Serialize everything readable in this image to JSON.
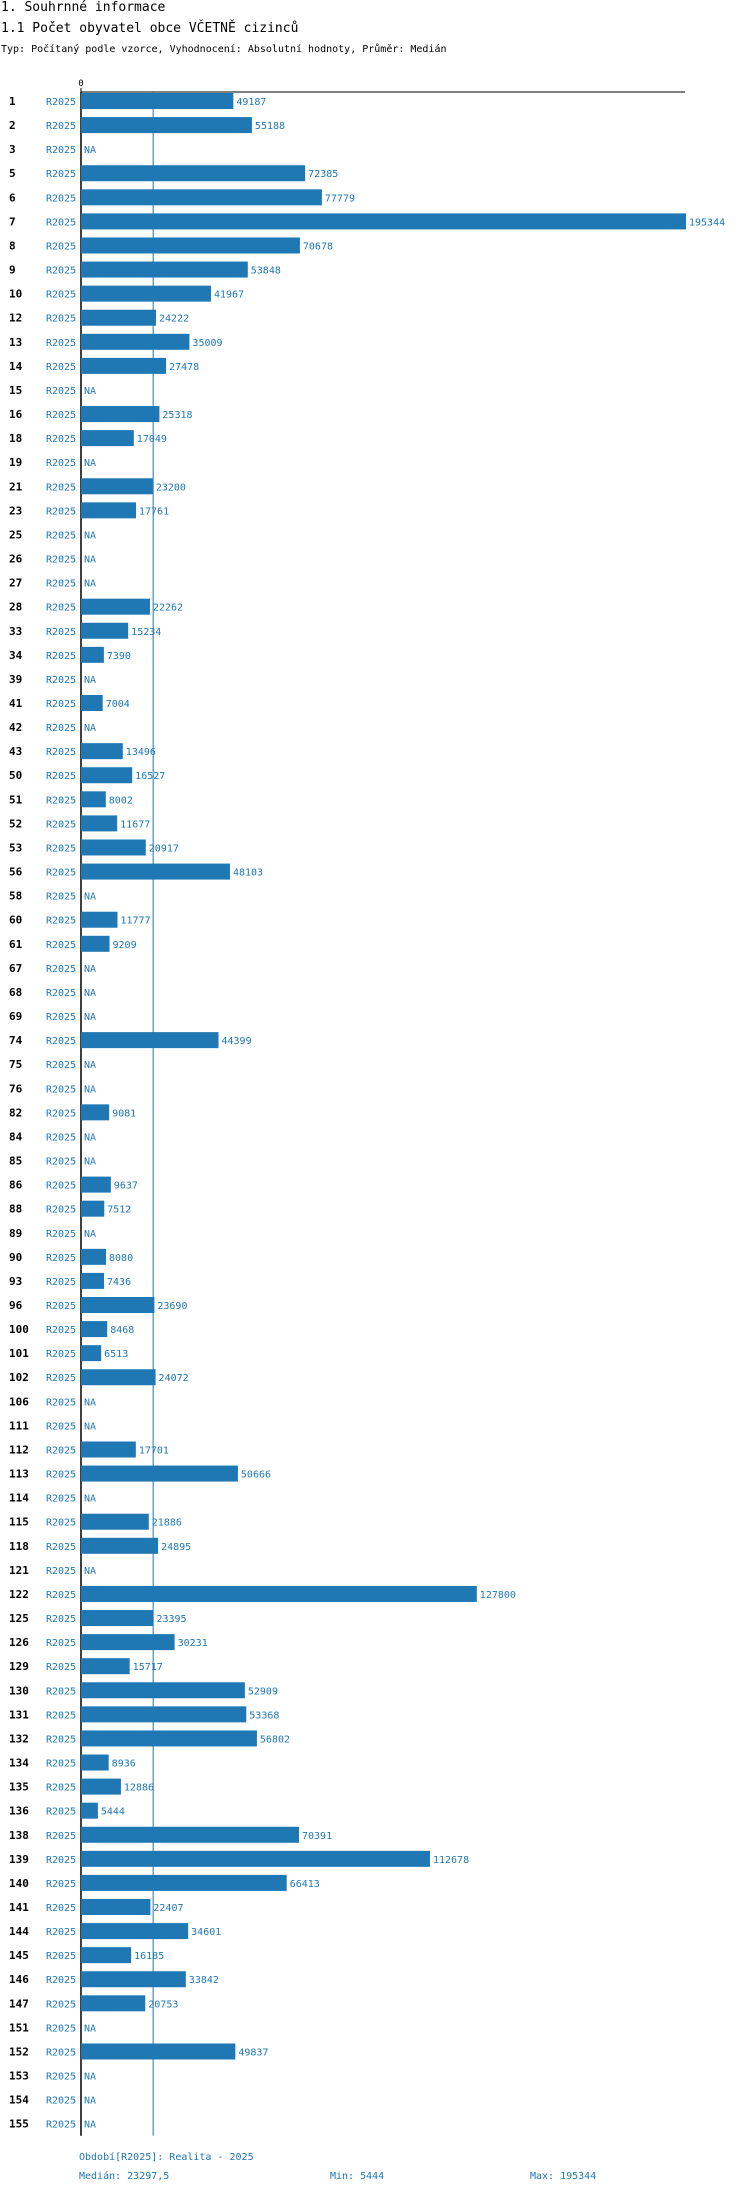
{
  "section_title": "1. Souhrnné informace",
  "chart_title": "1.1 Počet obyvatel obce VČETNĚ cizinců",
  "subtitle": "Typ: Počítaný podle vzorce, Vyhodnocení: Absolutní hodnoty, Průměr: Medián",
  "footer": {
    "period": "Období[R2025]: Realita - 2025",
    "median": "Medián: 23297,5",
    "min": "Min: 5444",
    "max": "Max: 195344"
  },
  "colors": {
    "bar": "#1f77b4",
    "period_text": "#1f77b4",
    "axis": "#000000"
  },
  "chart_data": {
    "type": "bar",
    "orientation": "horizontal",
    "title": "1.1 Počet obyvatel obce VČETNĚ cizinců",
    "axis_zero_label": "0",
    "period_label": "R2025",
    "na_label": "NA",
    "median": 23297.5,
    "min": 5444,
    "max": 195344,
    "xlim": [
      0,
      195344
    ],
    "categories": [
      "1",
      "2",
      "3",
      "5",
      "6",
      "7",
      "8",
      "9",
      "10",
      "12",
      "13",
      "14",
      "15",
      "16",
      "18",
      "19",
      "21",
      "23",
      "25",
      "26",
      "27",
      "28",
      "33",
      "34",
      "39",
      "41",
      "42",
      "43",
      "50",
      "51",
      "52",
      "53",
      "56",
      "58",
      "60",
      "61",
      "67",
      "68",
      "69",
      "74",
      "75",
      "76",
      "82",
      "84",
      "85",
      "86",
      "88",
      "89",
      "90",
      "93",
      "96",
      "100",
      "101",
      "102",
      "106",
      "111",
      "112",
      "113",
      "114",
      "115",
      "118",
      "121",
      "122",
      "125",
      "126",
      "129",
      "130",
      "131",
      "132",
      "134",
      "135",
      "136",
      "138",
      "139",
      "140",
      "141",
      "144",
      "145",
      "146",
      "147",
      "151",
      "152",
      "153",
      "154",
      "155"
    ],
    "values": [
      49187,
      55188,
      null,
      72385,
      77779,
      195344,
      70678,
      53848,
      41967,
      24222,
      35009,
      27478,
      null,
      25318,
      17049,
      null,
      23200,
      17761,
      null,
      null,
      null,
      22262,
      15234,
      7390,
      null,
      7004,
      null,
      13496,
      16527,
      8002,
      11677,
      20917,
      48103,
      null,
      11777,
      9209,
      null,
      null,
      null,
      44399,
      null,
      null,
      9081,
      null,
      null,
      9637,
      7512,
      null,
      8080,
      7436,
      23690,
      8468,
      6513,
      24072,
      null,
      null,
      17701,
      50666,
      null,
      21886,
      24895,
      null,
      127800,
      23395,
      30231,
      15717,
      52909,
      53368,
      56802,
      8936,
      12886,
      5444,
      70391,
      112678,
      66413,
      22407,
      34601,
      16185,
      33842,
      20753,
      null,
      49837,
      null,
      null,
      null
    ]
  }
}
